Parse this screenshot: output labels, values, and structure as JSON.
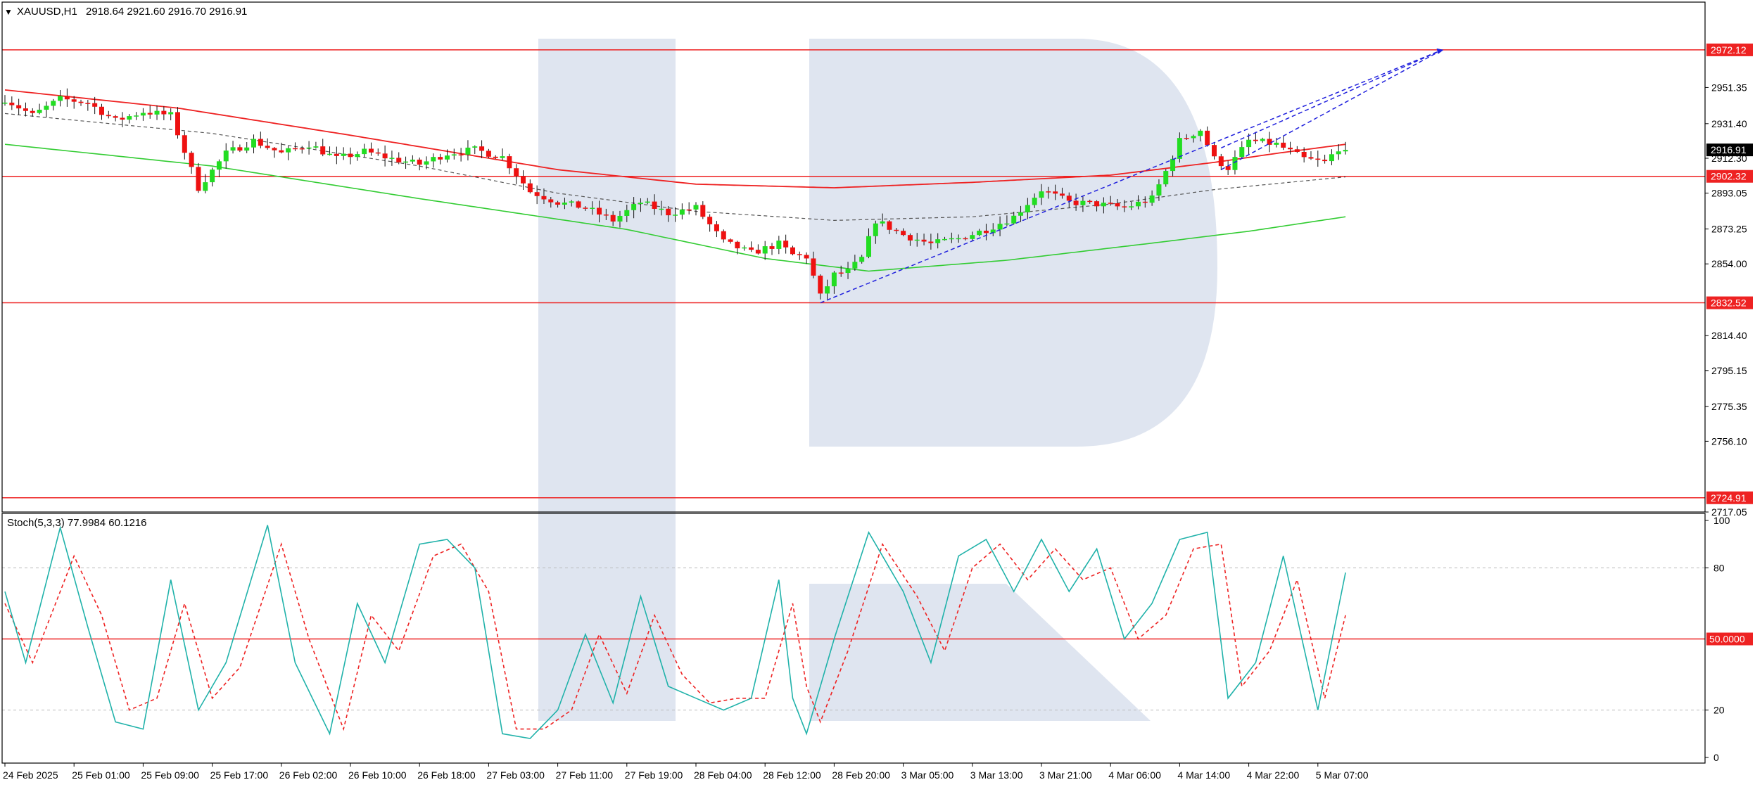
{
  "header": {
    "symbol": "XAUUSD,H1",
    "ohlc": "2918.64 2921.60 2916.70 2916.91"
  },
  "indicator": {
    "label": "Stoch(5,3,3) 77.9984 60.1216",
    "levels": [
      80,
      50,
      20
    ],
    "axis_ticks": [
      100,
      80,
      20,
      0
    ],
    "level_label_50": "50.0000"
  },
  "colors": {
    "bull": "#22dd22",
    "bear": "#ee1111",
    "ma_red": "#ee2222",
    "ma_green": "#33cc33",
    "stoch_main": "#20b2aa",
    "stoch_signal": "#ee2222",
    "trend": "#2020dd",
    "level": "#ee2222",
    "watermark": "#dbe2ee"
  },
  "chart_data": {
    "type": "candlestick",
    "ylim": [
      2717.05,
      2988
    ],
    "price_ticks": [
      2951.35,
      2931.4,
      2912.3,
      2893.05,
      2873.25,
      2854.0,
      2814.4,
      2795.15,
      2775.35,
      2756.1,
      2717.05
    ],
    "horizontal_levels": [
      2972.12,
      2902.32,
      2832.52,
      2724.91
    ],
    "current_price": 2916.91,
    "x_labels": [
      "24 Feb 2025",
      "25 Feb 01:00",
      "25 Feb 09:00",
      "25 Feb 17:00",
      "26 Feb 02:00",
      "26 Feb 10:00",
      "26 Feb 18:00",
      "27 Feb 03:00",
      "27 Feb 11:00",
      "27 Feb 19:00",
      "28 Feb 04:00",
      "28 Feb 12:00",
      "28 Feb 20:00",
      "3 Mar 05:00",
      "3 Mar 13:00",
      "3 Mar 21:00",
      "4 Mar 06:00",
      "4 Mar 14:00",
      "4 Mar 22:00",
      "5 Mar 07:00"
    ],
    "close_anchors": [
      [
        0,
        2945
      ],
      [
        4,
        2936
      ],
      [
        8,
        2945
      ],
      [
        12,
        2943
      ],
      [
        16,
        2933
      ],
      [
        20,
        2938
      ],
      [
        24,
        2936
      ],
      [
        28,
        2896
      ],
      [
        32,
        2915
      ],
      [
        36,
        2922
      ],
      [
        40,
        2915
      ],
      [
        44,
        2920
      ],
      [
        48,
        2912
      ],
      [
        52,
        2916
      ],
      [
        56,
        2912
      ],
      [
        60,
        2909
      ],
      [
        64,
        2915
      ],
      [
        68,
        2917
      ],
      [
        72,
        2913
      ],
      [
        76,
        2894
      ],
      [
        80,
        2888
      ],
      [
        84,
        2885
      ],
      [
        88,
        2878
      ],
      [
        92,
        2888
      ],
      [
        96,
        2882
      ],
      [
        100,
        2885
      ],
      [
        104,
        2866
      ],
      [
        108,
        2860
      ],
      [
        112,
        2865
      ],
      [
        114,
        2859
      ],
      [
        116,
        2858
      ],
      [
        118,
        2836
      ],
      [
        120,
        2848
      ],
      [
        122,
        2850
      ],
      [
        124,
        2857
      ],
      [
        126,
        2878
      ],
      [
        130,
        2870
      ],
      [
        134,
        2865
      ],
      [
        138,
        2868
      ],
      [
        142,
        2873
      ],
      [
        146,
        2880
      ],
      [
        150,
        2895
      ],
      [
        154,
        2888
      ],
      [
        158,
        2887
      ],
      [
        162,
        2885
      ],
      [
        166,
        2890
      ],
      [
        168,
        2905
      ],
      [
        170,
        2922
      ],
      [
        173,
        2928
      ],
      [
        175,
        2912
      ],
      [
        177,
        2907
      ],
      [
        180,
        2922
      ],
      [
        184,
        2920
      ],
      [
        188,
        2912
      ],
      [
        191,
        2910
      ],
      [
        193,
        2918
      ],
      [
        194,
        2916.91
      ]
    ],
    "ma_red": [
      [
        0,
        2950
      ],
      [
        25,
        2940
      ],
      [
        50,
        2925
      ],
      [
        80,
        2906
      ],
      [
        100,
        2898
      ],
      [
        120,
        2896
      ],
      [
        140,
        2899
      ],
      [
        160,
        2903
      ],
      [
        175,
        2910
      ],
      [
        184,
        2915
      ],
      [
        194,
        2920
      ]
    ],
    "ma_green": [
      [
        0,
        2920
      ],
      [
        30,
        2908
      ],
      [
        60,
        2890
      ],
      [
        90,
        2873
      ],
      [
        110,
        2857
      ],
      [
        125,
        2850
      ],
      [
        145,
        2856
      ],
      [
        165,
        2865
      ],
      [
        180,
        2872
      ],
      [
        194,
        2880
      ]
    ],
    "ma_gray": [
      [
        0,
        2937
      ],
      [
        30,
        2926
      ],
      [
        60,
        2908
      ],
      [
        80,
        2893
      ],
      [
        100,
        2883
      ],
      [
        120,
        2878
      ],
      [
        140,
        2880
      ],
      [
        160,
        2887
      ],
      [
        175,
        2895
      ],
      [
        194,
        2902
      ]
    ],
    "trend_lines": [
      [
        [
          118,
          2832.52
        ],
        [
          208,
          2972.12
        ]
      ],
      [
        [
          176,
          2906
        ],
        [
          208,
          2972.12
        ]
      ],
      [
        [
          176,
          2918
        ],
        [
          208,
          2972.12
        ]
      ]
    ],
    "stoch_main_anchors": [
      [
        0,
        70
      ],
      [
        3,
        40
      ],
      [
        8,
        97
      ],
      [
        12,
        55
      ],
      [
        16,
        15
      ],
      [
        20,
        12
      ],
      [
        24,
        75
      ],
      [
        28,
        20
      ],
      [
        32,
        40
      ],
      [
        38,
        98
      ],
      [
        42,
        40
      ],
      [
        47,
        10
      ],
      [
        51,
        65
      ],
      [
        55,
        40
      ],
      [
        60,
        90
      ],
      [
        64,
        92
      ],
      [
        68,
        80
      ],
      [
        72,
        10
      ],
      [
        76,
        8
      ],
      [
        80,
        20
      ],
      [
        84,
        52
      ],
      [
        88,
        23
      ],
      [
        92,
        68
      ],
      [
        96,
        30
      ],
      [
        100,
        25
      ],
      [
        104,
        20
      ],
      [
        108,
        25
      ],
      [
        112,
        75
      ],
      [
        114,
        25
      ],
      [
        116,
        10
      ],
      [
        120,
        50
      ],
      [
        125,
        95
      ],
      [
        130,
        70
      ],
      [
        134,
        40
      ],
      [
        138,
        85
      ],
      [
        142,
        92
      ],
      [
        146,
        70
      ],
      [
        150,
        92
      ],
      [
        154,
        70
      ],
      [
        158,
        88
      ],
      [
        162,
        50
      ],
      [
        166,
        65
      ],
      [
        170,
        92
      ],
      [
        174,
        95
      ],
      [
        177,
        25
      ],
      [
        181,
        40
      ],
      [
        185,
        85
      ],
      [
        190,
        20
      ],
      [
        194,
        78
      ]
    ],
    "stoch_signal_anchors": [
      [
        0,
        65
      ],
      [
        4,
        40
      ],
      [
        10,
        85
      ],
      [
        14,
        60
      ],
      [
        18,
        20
      ],
      [
        22,
        25
      ],
      [
        26,
        65
      ],
      [
        30,
        25
      ],
      [
        34,
        38
      ],
      [
        40,
        90
      ],
      [
        44,
        50
      ],
      [
        49,
        12
      ],
      [
        53,
        60
      ],
      [
        57,
        45
      ],
      [
        62,
        85
      ],
      [
        66,
        90
      ],
      [
        70,
        70
      ],
      [
        74,
        12
      ],
      [
        78,
        12
      ],
      [
        82,
        20
      ],
      [
        86,
        52
      ],
      [
        90,
        27
      ],
      [
        94,
        60
      ],
      [
        98,
        35
      ],
      [
        102,
        23
      ],
      [
        106,
        25
      ],
      [
        110,
        25
      ],
      [
        114,
        65
      ],
      [
        116,
        30
      ],
      [
        118,
        15
      ],
      [
        122,
        45
      ],
      [
        127,
        90
      ],
      [
        132,
        68
      ],
      [
        136,
        45
      ],
      [
        140,
        80
      ],
      [
        144,
        90
      ],
      [
        148,
        75
      ],
      [
        152,
        88
      ],
      [
        156,
        75
      ],
      [
        160,
        80
      ],
      [
        164,
        50
      ],
      [
        168,
        60
      ],
      [
        172,
        88
      ],
      [
        176,
        90
      ],
      [
        179,
        30
      ],
      [
        183,
        45
      ],
      [
        187,
        75
      ],
      [
        191,
        25
      ],
      [
        194,
        60
      ]
    ]
  }
}
